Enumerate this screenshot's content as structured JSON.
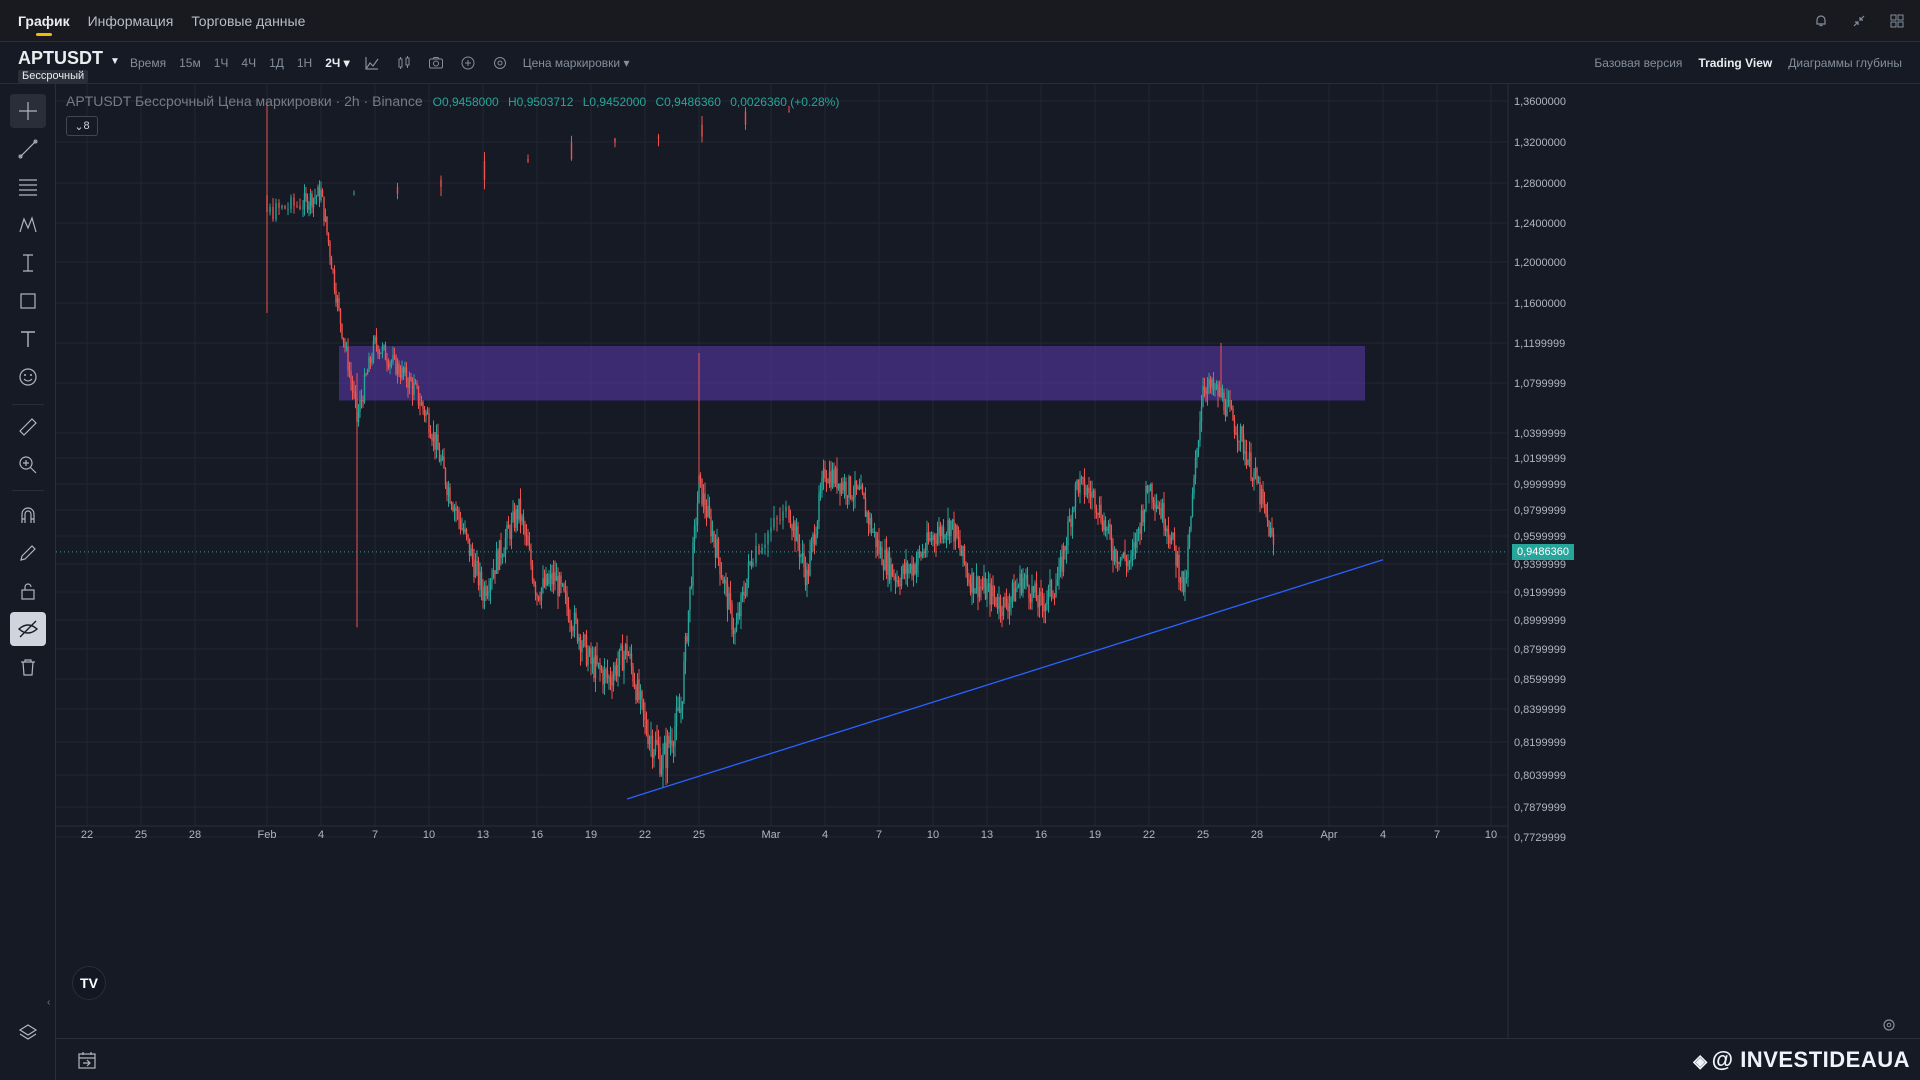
{
  "topnav": {
    "tabs": [
      {
        "label": "График",
        "active": true
      },
      {
        "label": "Информация",
        "active": false
      },
      {
        "label": "Торговые данные",
        "active": false
      }
    ],
    "icons": [
      "bell-icon",
      "collapse-icon",
      "layout-grid-icon"
    ]
  },
  "symbol": {
    "name": "APTUSDT",
    "type": "Бессрочный"
  },
  "toolbar": {
    "time_label": "Время",
    "intervals": [
      "15м",
      "1Ч",
      "4Ч",
      "1Д",
      "1Н",
      "2Ч"
    ],
    "active_interval": "2Ч",
    "price_type": "Цена маркировки",
    "views": [
      {
        "label": "Базовая версия",
        "active": false
      },
      {
        "label": "Trading View",
        "active": true
      },
      {
        "label": "Диаграммы глубины",
        "active": false
      }
    ]
  },
  "legend": {
    "title": "APTUSDT Бессрочный Цена маркировки · 2h · Binance",
    "open": "O0,9458000",
    "high": "H0,9503712",
    "low": "L0,9452000",
    "close": "C0,9486360",
    "change": "0,0026360 (+0.28%)",
    "indicator_count": "8"
  },
  "colors": {
    "up": "#26a69a",
    "down": "#ef5350",
    "zone": "#5c3bb0",
    "trendline": "#2962ff",
    "accent": "#f0b90b"
  },
  "last_price": "0,9486360",
  "watermark": "@ INVESTIDEAUA",
  "chart_data": {
    "type": "candlestick",
    "title": "APTUSDT Бессрочный Цена маркировки · 2h · Binance",
    "interval": "2h",
    "ylim": [
      0.765,
      1.37
    ],
    "y_ticks": [
      "1,3600000",
      "1,3200000",
      "1,2800000",
      "1,2400000",
      "1,2000000",
      "1,1600000",
      "1,1199999",
      "1,0799999",
      "1,0399999",
      "1,0199999",
      "0,9999999",
      "0,9799999",
      "0,9599999",
      "0,9399999",
      "0,9199999",
      "0,8999999",
      "0,8799999",
      "0,8599999",
      "0,8399999",
      "0,8199999",
      "0,8039999",
      "0,7879999",
      "0,7729999"
    ],
    "x_ticks": [
      "22",
      "25",
      "28",
      "Feb",
      "4",
      "7",
      "10",
      "13",
      "16",
      "19",
      "22",
      "25",
      "Mar",
      "4",
      "7",
      "10",
      "13",
      "16",
      "19",
      "22",
      "25",
      "28",
      "Apr",
      "4",
      "7",
      "10"
    ],
    "approx_close_path": [
      {
        "date": "Jan 31",
        "close": 1.35
      },
      {
        "date": "Feb 1",
        "close": 1.25
      },
      {
        "date": "Feb 3",
        "close": 1.26
      },
      {
        "date": "Feb 4",
        "close": 1.27
      },
      {
        "date": "Feb 5",
        "close": 1.15
      },
      {
        "date": "Feb 6",
        "close": 1.05
      },
      {
        "date": "Feb 7",
        "close": 1.12
      },
      {
        "date": "Feb 8",
        "close": 1.1
      },
      {
        "date": "Feb 9",
        "close": 1.08
      },
      {
        "date": "Feb 10",
        "close": 1.05
      },
      {
        "date": "Feb 11",
        "close": 1.0
      },
      {
        "date": "Feb 12",
        "close": 0.96
      },
      {
        "date": "Feb 13",
        "close": 0.92
      },
      {
        "date": "Feb 14",
        "close": 0.95
      },
      {
        "date": "Feb 15",
        "close": 0.98
      },
      {
        "date": "Feb 16",
        "close": 0.92
      },
      {
        "date": "Feb 17",
        "close": 0.93
      },
      {
        "date": "Feb 18",
        "close": 0.9
      },
      {
        "date": "Feb 19",
        "close": 0.87
      },
      {
        "date": "Feb 20",
        "close": 0.86
      },
      {
        "date": "Feb 21",
        "close": 0.88
      },
      {
        "date": "Feb 22",
        "close": 0.83
      },
      {
        "date": "Feb 23",
        "close": 0.81
      },
      {
        "date": "Feb 24",
        "close": 0.84
      },
      {
        "date": "Feb 25",
        "close": 1.0
      },
      {
        "date": "Feb 26",
        "close": 0.95
      },
      {
        "date": "Feb 27",
        "close": 0.89
      },
      {
        "date": "Feb 28",
        "close": 0.95
      },
      {
        "date": "Mar 1",
        "close": 0.98
      },
      {
        "date": "Mar 2",
        "close": 0.93
      },
      {
        "date": "Mar 3",
        "close": 1.01
      },
      {
        "date": "Mar 4",
        "close": 1.0
      },
      {
        "date": "Mar 5",
        "close": 0.99
      },
      {
        "date": "Mar 6",
        "close": 0.95
      },
      {
        "date": "Mar 7",
        "close": 0.93
      },
      {
        "date": "Mar 8",
        "close": 0.94
      },
      {
        "date": "Mar 9",
        "close": 0.96
      },
      {
        "date": "Mar 10",
        "close": 0.97
      },
      {
        "date": "Mar 11",
        "close": 0.93
      },
      {
        "date": "Mar 12",
        "close": 0.92
      },
      {
        "date": "Mar 13",
        "close": 0.91
      },
      {
        "date": "Mar 14",
        "close": 0.93
      },
      {
        "date": "Mar 15",
        "close": 0.91
      },
      {
        "date": "Mar 16",
        "close": 0.93
      },
      {
        "date": "Mar 17",
        "close": 1.0
      },
      {
        "date": "Mar 18",
        "close": 0.99
      },
      {
        "date": "Mar 19",
        "close": 0.95
      },
      {
        "date": "Mar 20",
        "close": 0.94
      },
      {
        "date": "Mar 21",
        "close": 1.0
      },
      {
        "date": "Mar 22",
        "close": 0.97
      },
      {
        "date": "Mar 23",
        "close": 0.92
      },
      {
        "date": "Mar 24",
        "close": 1.08
      },
      {
        "date": "Mar 25",
        "close": 1.07
      },
      {
        "date": "Mar 26",
        "close": 1.04
      },
      {
        "date": "Mar 27",
        "close": 1.0
      },
      {
        "date": "Mar 28",
        "close": 0.9486
      }
    ],
    "zone": {
      "price_top": 1.117,
      "price_bottom": 1.066,
      "start": "Feb 5",
      "end": "Apr 2"
    },
    "trendline": {
      "start": {
        "date": "Feb 21",
        "price": 0.792
      },
      "end": {
        "date": "Apr 3",
        "price": 0.943
      }
    },
    "last_price": 0.948636
  }
}
